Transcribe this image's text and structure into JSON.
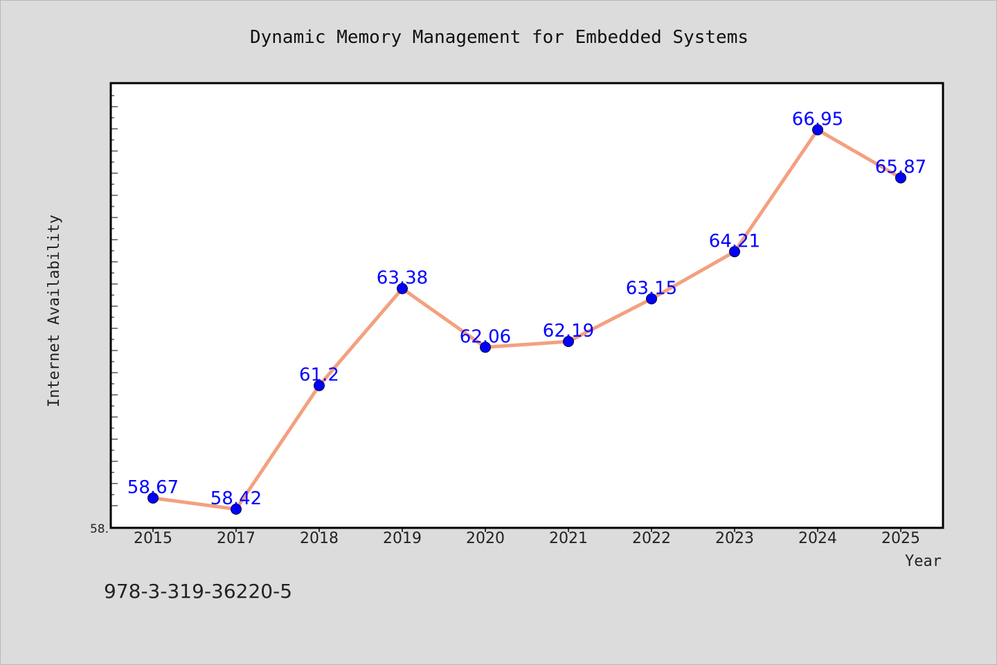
{
  "chart_data": {
    "type": "line",
    "title": "Dynamic Memory Management for Embedded Systems",
    "xlabel": "Year",
    "ylabel": "Internet Availability",
    "categories": [
      "2015",
      "2017",
      "2018",
      "2019",
      "2020",
      "2021",
      "2022",
      "2023",
      "2024",
      "2025"
    ],
    "series": [
      {
        "values": [
          58.67,
          58.42,
          61.2,
          63.38,
          62.06,
          62.19,
          63.15,
          64.21,
          66.95,
          65.87
        ],
        "labels": [
          "58.67",
          "58.42",
          "61.2",
          "63.38",
          "62.06",
          "62.19",
          "63.15",
          "64.21",
          "66.95",
          "65.87"
        ]
      }
    ],
    "ylim": [
      58.0,
      68.0
    ],
    "y_tick_label": "58.",
    "grid": false,
    "line_color": "#f4a07f",
    "marker_color": "#0000ff",
    "label_color": "#0000ff"
  },
  "footer": {
    "isbn": "978-3-319-36220-5"
  }
}
